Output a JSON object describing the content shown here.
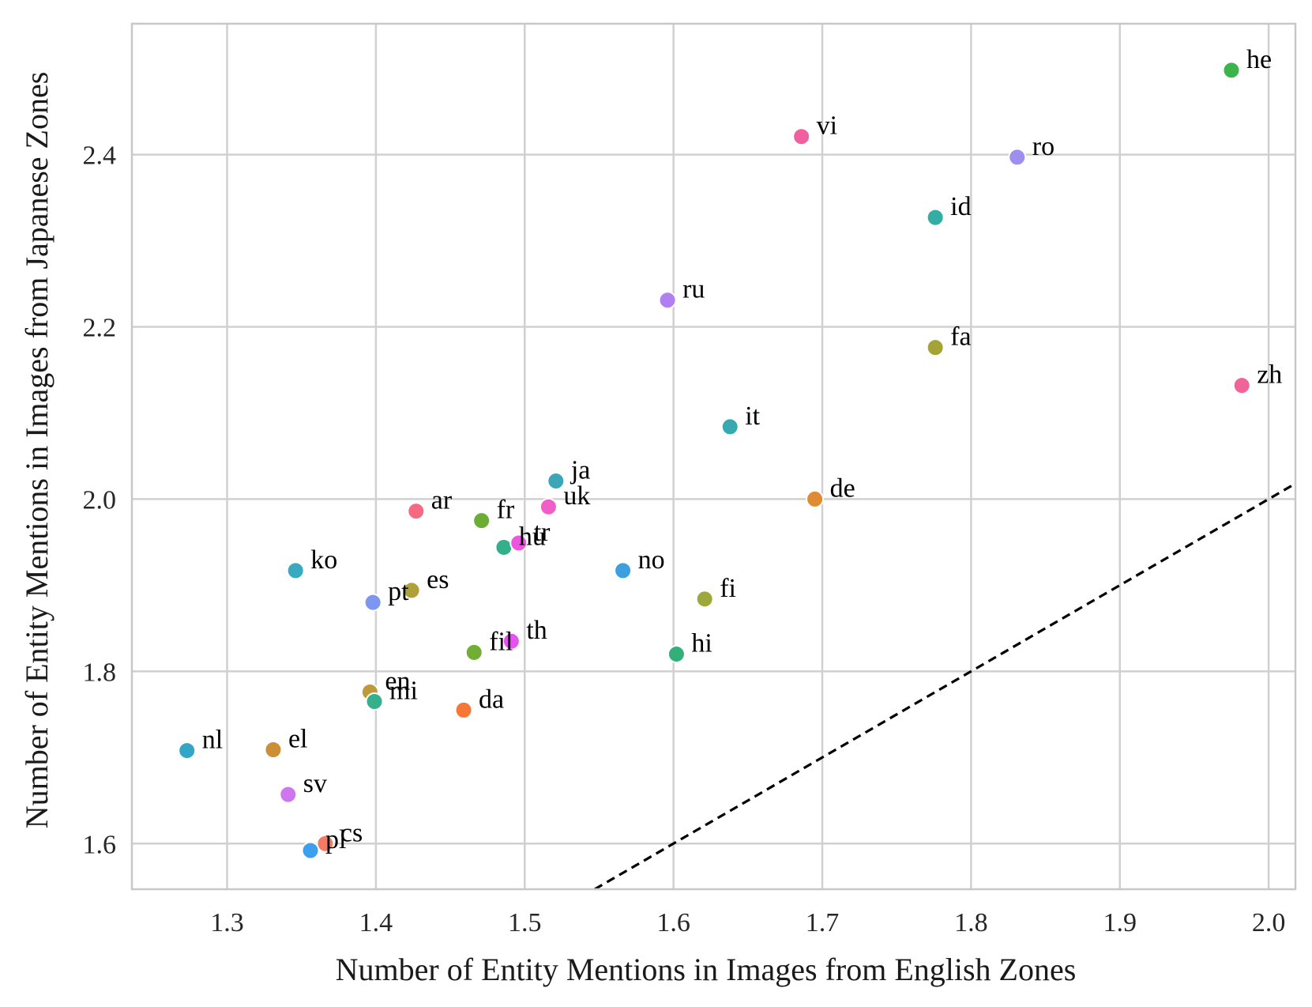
{
  "chart_data": {
    "type": "scatter",
    "title": "",
    "xlabel": "Number of Entity Mentions in Images from English Zones",
    "ylabel": "Number of Entity Mentions in Images from Japanese Zones",
    "xlim": [
      1.236,
      2.018
    ],
    "ylim": [
      1.547,
      2.552
    ],
    "xticks": [
      1.3,
      1.4,
      1.5,
      1.6,
      1.7,
      1.8,
      1.9,
      2.0
    ],
    "xtick_labels": [
      "1.3",
      "1.4",
      "1.5",
      "1.6",
      "1.7",
      "1.8",
      "1.9",
      "2.0"
    ],
    "yticks": [
      1.6,
      1.8,
      2.0,
      2.2,
      2.4
    ],
    "ytick_labels": [
      "1.6",
      "1.8",
      "2.0",
      "2.2",
      "2.4"
    ],
    "grid": true,
    "reference_line": "y = x",
    "points": [
      {
        "label": "he",
        "x": 1.975,
        "y": 2.498,
        "color": "#3cb44b"
      },
      {
        "label": "vi",
        "x": 1.686,
        "y": 2.421,
        "color": "#f0609e"
      },
      {
        "label": "ro",
        "x": 1.831,
        "y": 2.397,
        "color": "#9d8ff0"
      },
      {
        "label": "id",
        "x": 1.776,
        "y": 2.327,
        "color": "#34ada5"
      },
      {
        "label": "ru",
        "x": 1.596,
        "y": 2.231,
        "color": "#b07ff0"
      },
      {
        "label": "fa",
        "x": 1.776,
        "y": 2.176,
        "color": "#a3a336"
      },
      {
        "label": "zh",
        "x": 1.982,
        "y": 2.132,
        "color": "#f0649a"
      },
      {
        "label": "it",
        "x": 1.638,
        "y": 2.084,
        "color": "#36aab0"
      },
      {
        "label": "ja",
        "x": 1.521,
        "y": 2.021,
        "color": "#3aa6b8"
      },
      {
        "label": "de",
        "x": 1.695,
        "y": 2.0,
        "color": "#e08a33"
      },
      {
        "label": "uk",
        "x": 1.516,
        "y": 1.991,
        "color": "#f25ec8"
      },
      {
        "label": "ar",
        "x": 1.427,
        "y": 1.986,
        "color": "#f56a82"
      },
      {
        "label": "fr",
        "x": 1.471,
        "y": 1.975,
        "color": "#6cae35"
      },
      {
        "label": "hu",
        "x": 1.486,
        "y": 1.944,
        "color": "#33b08a"
      },
      {
        "label": "tr",
        "x": 1.496,
        "y": 1.949,
        "color": "#ec55df"
      },
      {
        "label": "ko",
        "x": 1.346,
        "y": 1.917,
        "color": "#38a9c0"
      },
      {
        "label": "no",
        "x": 1.566,
        "y": 1.917,
        "color": "#3c9fe0"
      },
      {
        "label": "es",
        "x": 1.424,
        "y": 1.894,
        "color": "#b0a03a"
      },
      {
        "label": "fi",
        "x": 1.621,
        "y": 1.884,
        "color": "#9ea83a"
      },
      {
        "label": "pt",
        "x": 1.398,
        "y": 1.88,
        "color": "#7d96f0"
      },
      {
        "label": "th",
        "x": 1.491,
        "y": 1.835,
        "color": "#e552f0"
      },
      {
        "label": "fil",
        "x": 1.466,
        "y": 1.822,
        "color": "#72ae36"
      },
      {
        "label": "hi",
        "x": 1.602,
        "y": 1.82,
        "color": "#33b07a"
      },
      {
        "label": "en",
        "x": 1.396,
        "y": 1.776,
        "color": "#c09a3a"
      },
      {
        "label": "mi",
        "x": 1.399,
        "y": 1.765,
        "color": "#35b08b"
      },
      {
        "label": "da",
        "x": 1.459,
        "y": 1.755,
        "color": "#f57838"
      },
      {
        "label": "nl",
        "x": 1.273,
        "y": 1.708,
        "color": "#33a6c8"
      },
      {
        "label": "el",
        "x": 1.331,
        "y": 1.709,
        "color": "#cd8e38"
      },
      {
        "label": "sv",
        "x": 1.341,
        "y": 1.657,
        "color": "#cd76f0"
      },
      {
        "label": "cs",
        "x": 1.366,
        "y": 1.6,
        "color": "#f57a66"
      },
      {
        "label": "pl",
        "x": 1.356,
        "y": 1.592,
        "color": "#3da0ee"
      }
    ]
  }
}
